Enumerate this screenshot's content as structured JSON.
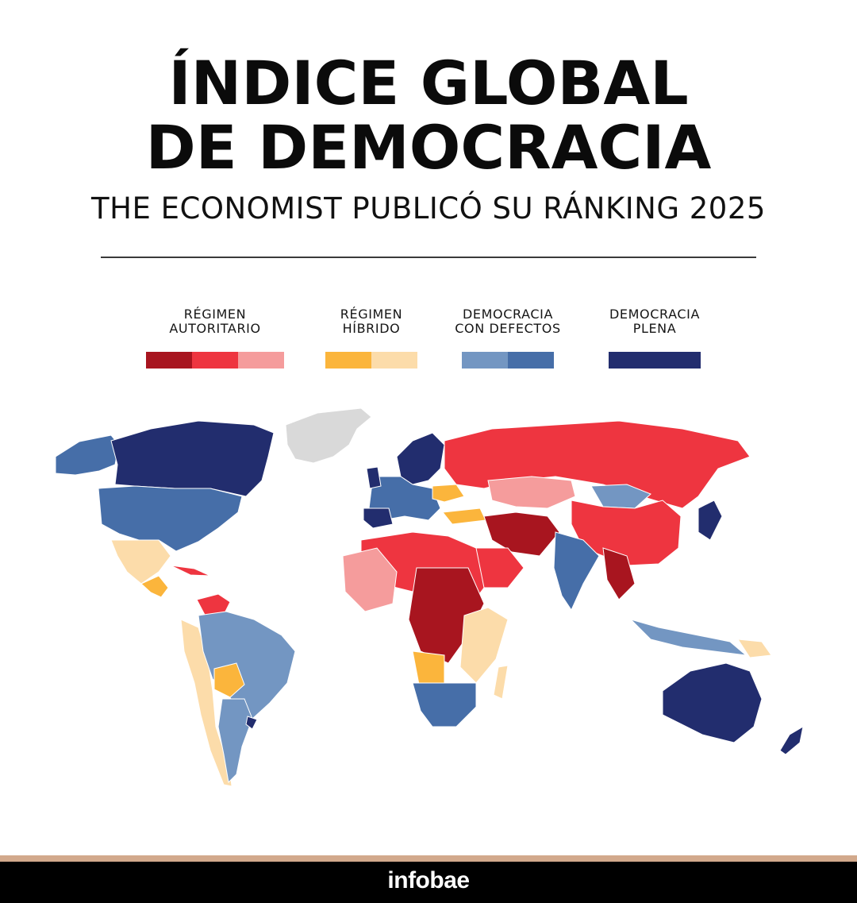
{
  "header": {
    "title_line1": "ÍNDICE GLOBAL",
    "title_line2": "DE DEMOCRACIA",
    "subtitle": "THE ECONOMIST PUBLICÓ SU RÁNKING 2025"
  },
  "legend": [
    {
      "line1": "RÉGIMEN",
      "line2": "AUTORITARIO",
      "colors": [
        "#a8151f",
        "#ee3540",
        "#f59c9c"
      ]
    },
    {
      "line1": "RÉGIMEN",
      "line2": "HÍBRIDO",
      "colors": [
        "#fbb53c",
        "#fcdcaa"
      ]
    },
    {
      "line1": "DEMOCRACIA",
      "line2": "CON DEFECTOS",
      "colors": [
        "#7396c2",
        "#466ea8"
      ]
    },
    {
      "line1": "DEMOCRACIA",
      "line2": "PLENA",
      "colors": [
        "#222d6e"
      ]
    }
  ],
  "map_colors": {
    "no_data": "#d9d9d9",
    "auth_dark": "#a8151f",
    "auth_mid": "#ee3540",
    "auth_light": "#f59c9c",
    "hybrid_dark": "#fbb53c",
    "hybrid_light": "#fcdcaa",
    "flawed_light": "#7396c2",
    "flawed_dark": "#466ea8",
    "full": "#222d6e"
  },
  "footer": {
    "brand": "infobae"
  }
}
